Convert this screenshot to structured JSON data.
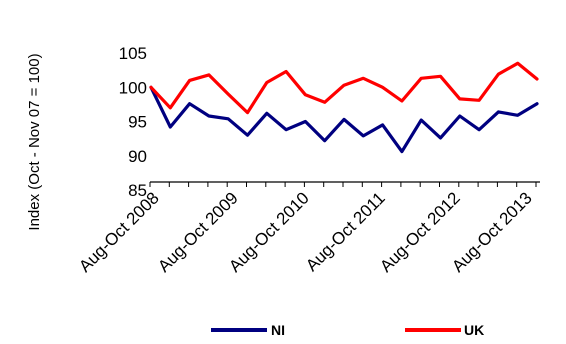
{
  "chart_data": {
    "type": "line",
    "title": "",
    "xlabel": "",
    "ylabel": "Index (Oct - Nov 07 = 100)",
    "ylim": [
      80,
      105
    ],
    "y_ticks": [
      85,
      90,
      95,
      100,
      105
    ],
    "x_tick_labels": [
      "Aug-Oct 2008",
      "Aug-Oct 2009",
      "Aug-Oct 2010",
      "Aug-Oct 2011",
      "Aug-Oct 2012",
      "Aug-Oct 2013"
    ],
    "grid": false,
    "legend_position": "bottom",
    "series": [
      {
        "name": "NI",
        "color": "#000080",
        "values": [
          100.0,
          94.2,
          97.6,
          95.8,
          95.4,
          93.0,
          96.2,
          93.8,
          95.0,
          92.2,
          95.3,
          92.9,
          94.5,
          90.6,
          95.2,
          92.6,
          95.8,
          93.8,
          96.4,
          95.9,
          97.6
        ]
      },
      {
        "name": "UK",
        "color": "#ff0000",
        "values": [
          100.0,
          97.0,
          101.0,
          101.8,
          99.0,
          96.3,
          100.7,
          102.3,
          98.9,
          97.8,
          100.3,
          101.3,
          100.0,
          98.0,
          101.3,
          101.6,
          98.3,
          98.1,
          101.9,
          103.5,
          101.2
        ]
      }
    ]
  }
}
